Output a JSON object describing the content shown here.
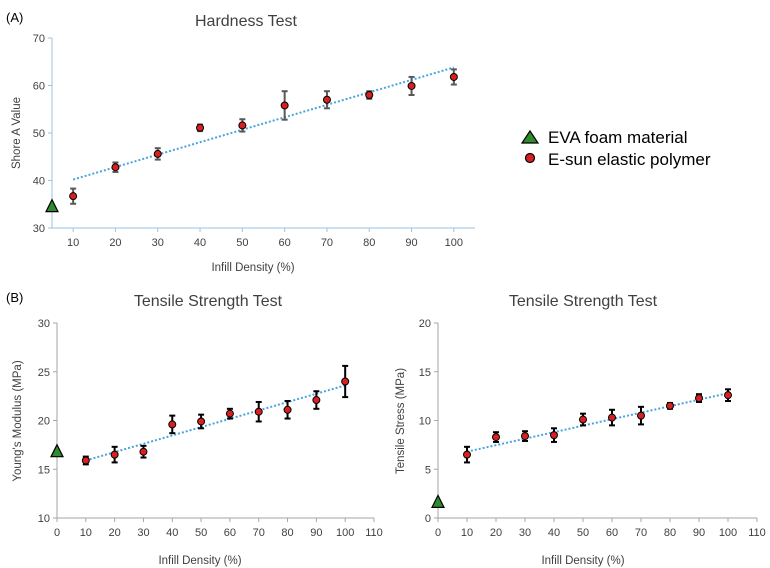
{
  "panel_labels": [
    "(A)",
    "(B)"
  ],
  "legend": {
    "items": [
      {
        "label": "EVA foam material",
        "marker": "triangle",
        "color": "#2e8b2e"
      },
      {
        "label": "E-sun elastic polymer",
        "marker": "circle",
        "color": "#d92020"
      }
    ]
  },
  "colors": {
    "trend": "#4aa3df",
    "axis_a": "#9cc3e6",
    "axis_b": "#a6a6a6",
    "error": "#595959",
    "error_b": "#000000"
  },
  "chart_data": [
    {
      "type": "scatter",
      "title": "Hardness Test",
      "xlabel": "Infill Density (%)",
      "ylabel": "Shore A Value",
      "xticks": [
        10,
        20,
        30,
        40,
        50,
        60,
        70,
        80,
        90,
        100
      ],
      "xticks_labels": [
        "10",
        "20",
        "30",
        "40",
        "50",
        "60",
        "70",
        "80",
        "90",
        "100"
      ],
      "xlim": [
        5,
        105
      ],
      "ylim": [
        30,
        70
      ],
      "yticks": [
        30,
        40,
        50,
        60,
        70
      ],
      "yticks_labels": [
        "30",
        "40",
        "50",
        "60",
        "70"
      ],
      "series": [
        {
          "name": "E-sun elastic polymer",
          "x": [
            10,
            20,
            30,
            40,
            50,
            60,
            70,
            80,
            90,
            100
          ],
          "y": [
            36.7,
            42.8,
            45.6,
            51.1,
            51.6,
            55.8,
            57.0,
            58.0,
            59.9,
            61.8
          ],
          "err": [
            1.6,
            1.0,
            1.2,
            0.7,
            1.3,
            3.0,
            1.8,
            0.8,
            1.9,
            1.6
          ]
        },
        {
          "name": "EVA foam material",
          "x": [
            5
          ],
          "y": [
            34.5
          ]
        }
      ],
      "trendline": {
        "x": [
          10,
          100
        ],
        "y": [
          40.2,
          63.8
        ]
      }
    },
    {
      "type": "scatter",
      "title": "Tensile Strength Test",
      "xlabel": "Infill Density (%)",
      "ylabel": "Young's Modulus (MPa)",
      "xticks": [
        0,
        10,
        20,
        30,
        40,
        50,
        60,
        70,
        80,
        90,
        100,
        110
      ],
      "xticks_labels": [
        "0",
        "10",
        "20",
        "30",
        "40",
        "50",
        "60",
        "70",
        "80",
        "90",
        "100",
        "110"
      ],
      "xlim": [
        0,
        110
      ],
      "ylim": [
        10,
        30
      ],
      "yticks": [
        10,
        15,
        20,
        25,
        30
      ],
      "yticks_labels": [
        "10",
        "15",
        "20",
        "25",
        "30"
      ],
      "series": [
        {
          "name": "E-sun elastic polymer",
          "x": [
            10,
            20,
            30,
            40,
            50,
            60,
            70,
            80,
            90,
            100
          ],
          "y": [
            15.9,
            16.5,
            16.8,
            19.6,
            19.9,
            20.7,
            20.9,
            21.1,
            22.1,
            24.0
          ],
          "err": [
            0.4,
            0.8,
            0.6,
            0.9,
            0.7,
            0.5,
            1.0,
            0.9,
            0.9,
            1.6
          ]
        },
        {
          "name": "EVA foam material",
          "x": [
            0
          ],
          "y": [
            16.8
          ]
        }
      ],
      "trendline": {
        "x": [
          10,
          100
        ],
        "y": [
          15.9,
          23.6
        ]
      }
    },
    {
      "type": "scatter",
      "title": "Tensile Strength Test",
      "xlabel": "Infill Density (%)",
      "ylabel": "Tensile Stress (MPa)",
      "xticks": [
        0,
        10,
        20,
        30,
        40,
        50,
        60,
        70,
        80,
        90,
        100,
        110
      ],
      "xticks_labels": [
        "0",
        "10",
        "20",
        "30",
        "40",
        "50",
        "60",
        "70",
        "80",
        "90",
        "100",
        "110"
      ],
      "xlim": [
        0,
        110
      ],
      "ylim": [
        0,
        20
      ],
      "yticks": [
        0,
        5,
        10,
        15,
        20
      ],
      "yticks_labels": [
        "0",
        "5",
        "10",
        "15",
        "20"
      ],
      "series": [
        {
          "name": "E-sun elastic polymer",
          "x": [
            10,
            20,
            30,
            40,
            50,
            60,
            70,
            80,
            90,
            100
          ],
          "y": [
            6.5,
            8.3,
            8.4,
            8.5,
            10.1,
            10.3,
            10.5,
            11.5,
            12.3,
            12.6
          ],
          "err": [
            0.8,
            0.5,
            0.5,
            0.7,
            0.6,
            0.8,
            0.9,
            0.3,
            0.4,
            0.6
          ]
        },
        {
          "name": "EVA foam material",
          "x": [
            0
          ],
          "y": [
            1.6
          ]
        }
      ],
      "trendline": {
        "x": [
          10,
          100
        ],
        "y": [
          6.8,
          12.8
        ]
      }
    }
  ]
}
